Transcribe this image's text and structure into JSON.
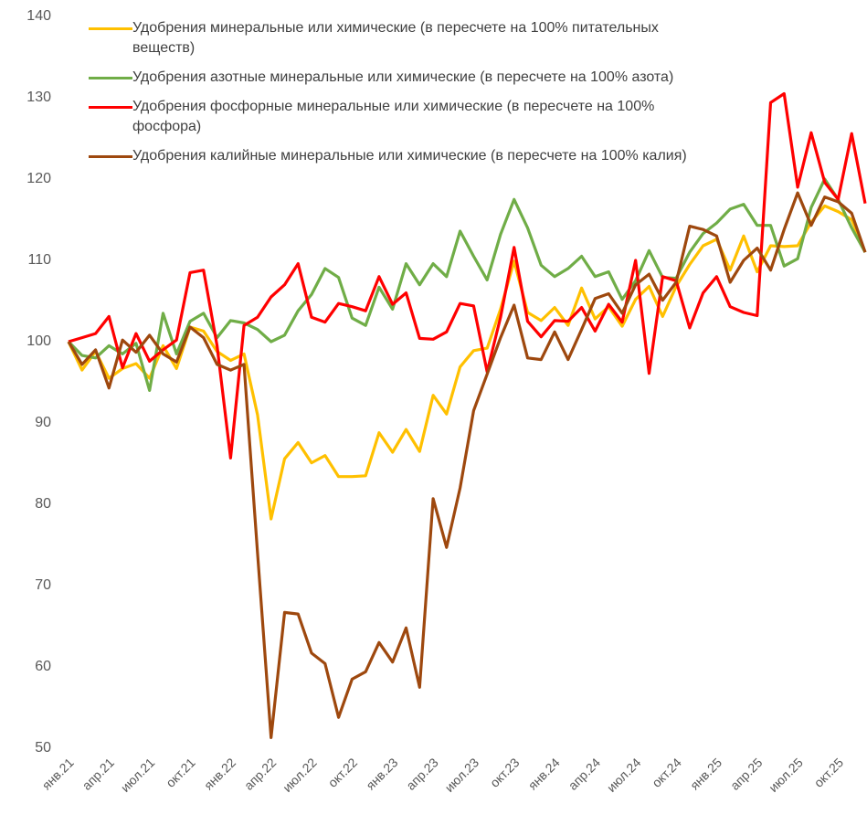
{
  "chart_data": {
    "type": "line",
    "categories": [
      "янв.21",
      null,
      null,
      "апр.21",
      null,
      null,
      "июл.21",
      null,
      null,
      "окт.21",
      null,
      null,
      "янв.22",
      null,
      null,
      "апр.22",
      null,
      null,
      "июл.22",
      null,
      null,
      "окт.22",
      null,
      null,
      "янв.23",
      null,
      null,
      "апр.23",
      null,
      null,
      "июл.23",
      null,
      null,
      "окт.23",
      null,
      null,
      "янв.24",
      null,
      null,
      "апр.24",
      null,
      null,
      "июл.24",
      null,
      null,
      "окт.24",
      null,
      null,
      "янв.25",
      null,
      null,
      "апр.25",
      null,
      null,
      "июл.25",
      null,
      null,
      "окт.25",
      null,
      null
    ],
    "series": [
      {
        "name": "Удобрения минеральные или химические (в пересчете на 100% питательных веществ)",
        "color": "#ffc000",
        "values": [
          100,
          96.5,
          98.8,
          95.5,
          96.7,
          97.3,
          95.5,
          99.5,
          96.7,
          101.8,
          101.3,
          98.8,
          97.7,
          98.5,
          91,
          78.2,
          85.6,
          87.6,
          85.1,
          86,
          83.4,
          83.4,
          83.5,
          88.8,
          86.4,
          89.2,
          86.5,
          93.4,
          91.1,
          96.9,
          98.9,
          99.2,
          104,
          109.9,
          103.6,
          102.6,
          104.2,
          102,
          106.6,
          102.8,
          104.3,
          101.9,
          105.2,
          106.8,
          103.1,
          106.8,
          109.5,
          111.8,
          112.6,
          108.8,
          113,
          108.6,
          111.8,
          111.7,
          111.8,
          114.7,
          116.7,
          116,
          115,
          111
        ]
      },
      {
        "name": "Удобрения азотные минеральные или химические (в пересчете на 100% азота)",
        "color": "#70ad47",
        "values": [
          100,
          98.3,
          98,
          99.5,
          98.5,
          99.8,
          94,
          103.5,
          98.5,
          102.5,
          103.5,
          100.5,
          102.6,
          102.3,
          101.5,
          100,
          100.8,
          103.8,
          105.8,
          109,
          107.9,
          102.9,
          102,
          106.7,
          104,
          109.6,
          107,
          109.6,
          108,
          113.6,
          110.5,
          107.6,
          113.2,
          117.5,
          114,
          109.4,
          108,
          109,
          110.5,
          108,
          108.6,
          105.2,
          107.5,
          111.2,
          107.9,
          107.8,
          111,
          113.3,
          114.6,
          116.3,
          116.9,
          114.3,
          114.3,
          109.3,
          110.2,
          116.5,
          120,
          117.5,
          114,
          111
        ]
      },
      {
        "name": "Удобрения фосфорные минеральные или химические (в пересчете на 100% фосфора)",
        "color": "#ff0000",
        "values": [
          100,
          100.5,
          101,
          103.1,
          96.8,
          101,
          97.6,
          99,
          100.2,
          108.5,
          108.8,
          99.5,
          85.7,
          102,
          103,
          105.5,
          107,
          109.6,
          103,
          102.4,
          104.7,
          104.3,
          103.8,
          108,
          104.6,
          106,
          100.4,
          100.3,
          101.2,
          104.7,
          104.4,
          96.3,
          103,
          111.6,
          102.5,
          100.6,
          102.6,
          102.5,
          104.2,
          101.3,
          104.6,
          102.4,
          110,
          96.1,
          108,
          107.5,
          101.7,
          106,
          108,
          104.3,
          103.6,
          103.2,
          129.4,
          130.5,
          119,
          125.7,
          119.6,
          117.5,
          125.6,
          117
        ]
      },
      {
        "name": "Удобрения калийные минеральные или химические (в пересчете на 100% калия)",
        "color": "#9e480e",
        "values": [
          100,
          97.2,
          99,
          94.3,
          100.2,
          98.7,
          100.8,
          98.5,
          97.5,
          101.8,
          100.5,
          97.2,
          96.5,
          97.2,
          74,
          51.3,
          66.7,
          66.5,
          61.7,
          60.4,
          53.8,
          58.5,
          59.4,
          63,
          60.6,
          64.8,
          57.5,
          80.7,
          74.7,
          82,
          91.5,
          96,
          100.5,
          104.5,
          98,
          97.8,
          101.2,
          97.8,
          101.5,
          105.3,
          105.9,
          103.5,
          107,
          108.3,
          105.1,
          107.3,
          114.2,
          113.8,
          113,
          107.3,
          110,
          111.5,
          108.8,
          113.8,
          118.3,
          114.3,
          117.8,
          117.2,
          115.8,
          111
        ]
      }
    ],
    "ylim": [
      50,
      140
    ],
    "yticks": [
      50,
      60,
      70,
      80,
      90,
      100,
      110,
      120,
      130,
      140
    ],
    "grid": false
  }
}
